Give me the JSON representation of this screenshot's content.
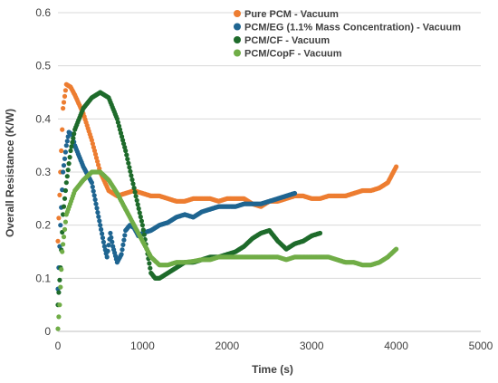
{
  "chart_data": {
    "type": "scatter",
    "xlabel": "Time (s)",
    "ylabel": "Overall Resistance (K/W)",
    "xlim": [
      0,
      5000
    ],
    "ylim": [
      0,
      0.6
    ],
    "x_ticks": [
      "0",
      "1000",
      "2000",
      "3000",
      "4000",
      "5000"
    ],
    "y_ticks": [
      "0",
      "0.1",
      "0.2",
      "0.3",
      "0.4",
      "0.5",
      "0.6"
    ],
    "grid": "horizontal",
    "legend_position": "top-right",
    "series": [
      {
        "name": "Pure PCM - Vacuum",
        "color": "#ED7D31",
        "points": [
          [
            0,
            0.17
          ],
          [
            30,
            0.3
          ],
          [
            60,
            0.42
          ],
          [
            100,
            0.465
          ],
          [
            150,
            0.46
          ],
          [
            200,
            0.445
          ],
          [
            300,
            0.41
          ],
          [
            400,
            0.36
          ],
          [
            500,
            0.3
          ],
          [
            600,
            0.265
          ],
          [
            700,
            0.255
          ],
          [
            800,
            0.26
          ],
          [
            900,
            0.265
          ],
          [
            1000,
            0.26
          ],
          [
            1100,
            0.255
          ],
          [
            1200,
            0.255
          ],
          [
            1300,
            0.25
          ],
          [
            1400,
            0.245
          ],
          [
            1500,
            0.245
          ],
          [
            1600,
            0.25
          ],
          [
            1700,
            0.25
          ],
          [
            1800,
            0.25
          ],
          [
            1900,
            0.245
          ],
          [
            2000,
            0.25
          ],
          [
            2100,
            0.25
          ],
          [
            2200,
            0.25
          ],
          [
            2300,
            0.24
          ],
          [
            2400,
            0.235
          ],
          [
            2500,
            0.245
          ],
          [
            2600,
            0.245
          ],
          [
            2700,
            0.25
          ],
          [
            2800,
            0.255
          ],
          [
            2900,
            0.255
          ],
          [
            3000,
            0.25
          ],
          [
            3100,
            0.25
          ],
          [
            3200,
            0.255
          ],
          [
            3300,
            0.255
          ],
          [
            3400,
            0.255
          ],
          [
            3500,
            0.26
          ],
          [
            3600,
            0.265
          ],
          [
            3700,
            0.265
          ],
          [
            3800,
            0.27
          ],
          [
            3900,
            0.28
          ],
          [
            3950,
            0.295
          ],
          [
            4000,
            0.31
          ]
        ]
      },
      {
        "name": "PCM/EG (1.1% Mass Concentration) - Vacuum",
        "color": "#1F6591",
        "points": [
          [
            0,
            0.08
          ],
          [
            30,
            0.2
          ],
          [
            60,
            0.3
          ],
          [
            100,
            0.35
          ],
          [
            130,
            0.375
          ],
          [
            170,
            0.37
          ],
          [
            200,
            0.35
          ],
          [
            250,
            0.33
          ],
          [
            300,
            0.31
          ],
          [
            400,
            0.28
          ],
          [
            450,
            0.24
          ],
          [
            500,
            0.2
          ],
          [
            550,
            0.16
          ],
          [
            580,
            0.14
          ],
          [
            620,
            0.185
          ],
          [
            650,
            0.16
          ],
          [
            700,
            0.13
          ],
          [
            750,
            0.145
          ],
          [
            800,
            0.19
          ],
          [
            850,
            0.2
          ],
          [
            900,
            0.195
          ],
          [
            950,
            0.18
          ],
          [
            1000,
            0.185
          ],
          [
            1100,
            0.19
          ],
          [
            1200,
            0.2
          ],
          [
            1300,
            0.205
          ],
          [
            1400,
            0.215
          ],
          [
            1500,
            0.22
          ],
          [
            1600,
            0.215
          ],
          [
            1700,
            0.225
          ],
          [
            1800,
            0.23
          ],
          [
            1900,
            0.235
          ],
          [
            2000,
            0.235
          ],
          [
            2100,
            0.235
          ],
          [
            2200,
            0.24
          ],
          [
            2300,
            0.24
          ],
          [
            2400,
            0.24
          ],
          [
            2500,
            0.245
          ],
          [
            2600,
            0.25
          ],
          [
            2700,
            0.255
          ],
          [
            2800,
            0.26
          ]
        ]
      },
      {
        "name": "PCM/CF - Vacuum",
        "color": "#1E6B2B",
        "points": [
          [
            0,
            0.05
          ],
          [
            30,
            0.12
          ],
          [
            60,
            0.22
          ],
          [
            100,
            0.28
          ],
          [
            150,
            0.34
          ],
          [
            200,
            0.38
          ],
          [
            300,
            0.42
          ],
          [
            400,
            0.44
          ],
          [
            500,
            0.45
          ],
          [
            600,
            0.44
          ],
          [
            700,
            0.4
          ],
          [
            800,
            0.34
          ],
          [
            900,
            0.27
          ],
          [
            1000,
            0.2
          ],
          [
            1050,
            0.155
          ],
          [
            1100,
            0.11
          ],
          [
            1150,
            0.1
          ],
          [
            1200,
            0.1
          ],
          [
            1300,
            0.11
          ],
          [
            1400,
            0.12
          ],
          [
            1500,
            0.13
          ],
          [
            1600,
            0.13
          ],
          [
            1700,
            0.135
          ],
          [
            1800,
            0.14
          ],
          [
            1900,
            0.14
          ],
          [
            2000,
            0.145
          ],
          [
            2100,
            0.15
          ],
          [
            2200,
            0.16
          ],
          [
            2300,
            0.175
          ],
          [
            2400,
            0.185
          ],
          [
            2500,
            0.19
          ],
          [
            2550,
            0.18
          ],
          [
            2600,
            0.17
          ],
          [
            2700,
            0.155
          ],
          [
            2800,
            0.165
          ],
          [
            2900,
            0.17
          ],
          [
            3000,
            0.18
          ],
          [
            3100,
            0.185
          ]
        ]
      },
      {
        "name": "PCM/CopF - Vacuum",
        "color": "#70AD47",
        "points": [
          [
            0,
            0.005
          ],
          [
            20,
            0.05
          ],
          [
            50,
            0.15
          ],
          [
            100,
            0.22
          ],
          [
            200,
            0.265
          ],
          [
            300,
            0.285
          ],
          [
            400,
            0.3
          ],
          [
            500,
            0.3
          ],
          [
            600,
            0.285
          ],
          [
            700,
            0.26
          ],
          [
            800,
            0.23
          ],
          [
            900,
            0.2
          ],
          [
            1000,
            0.17
          ],
          [
            1100,
            0.14
          ],
          [
            1200,
            0.125
          ],
          [
            1300,
            0.125
          ],
          [
            1400,
            0.13
          ],
          [
            1500,
            0.13
          ],
          [
            1600,
            0.132
          ],
          [
            1700,
            0.135
          ],
          [
            1800,
            0.135
          ],
          [
            1900,
            0.14
          ],
          [
            2000,
            0.14
          ],
          [
            2100,
            0.14
          ],
          [
            2200,
            0.14
          ],
          [
            2300,
            0.14
          ],
          [
            2400,
            0.14
          ],
          [
            2500,
            0.14
          ],
          [
            2600,
            0.14
          ],
          [
            2700,
            0.135
          ],
          [
            2800,
            0.14
          ],
          [
            2900,
            0.14
          ],
          [
            3000,
            0.14
          ],
          [
            3100,
            0.14
          ],
          [
            3200,
            0.14
          ],
          [
            3300,
            0.135
          ],
          [
            3400,
            0.13
          ],
          [
            3500,
            0.13
          ],
          [
            3600,
            0.125
          ],
          [
            3700,
            0.125
          ],
          [
            3800,
            0.13
          ],
          [
            3900,
            0.14
          ],
          [
            4000,
            0.155
          ]
        ]
      }
    ]
  }
}
